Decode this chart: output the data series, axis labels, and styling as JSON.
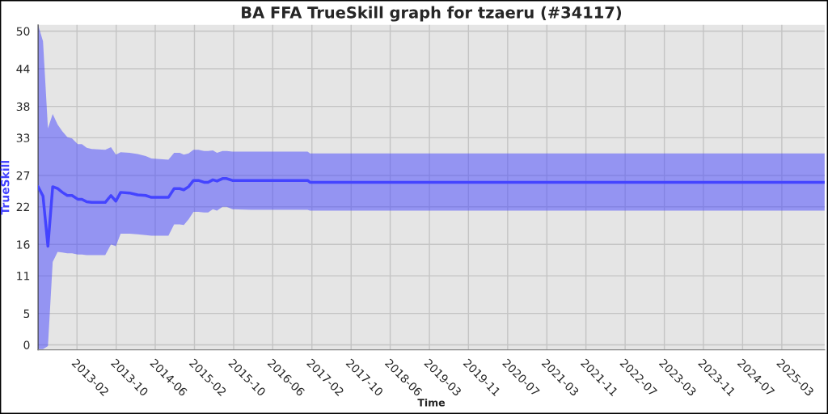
{
  "chart_data": {
    "type": "line",
    "title": "BA FFA TrueSkill graph for tzaeru (#34117)",
    "xlabel": "Time",
    "ylabel": "TrueSkill",
    "x": [
      "2012-06-01",
      "2012-07-02",
      "2012-08-02",
      "2012-09-01",
      "2012-10-02",
      "2012-11-01",
      "2012-12-02",
      "2013-01-01",
      "2013-02-06",
      "2013-03-04",
      "2013-04-03",
      "2013-05-04",
      "2013-07-29",
      "2013-09-03",
      "2013-10-04",
      "2013-11-03",
      "2013-12-29",
      "2014-02-18",
      "2014-04-10",
      "2014-05-16",
      "2014-08-31",
      "2014-10-06",
      "2014-11-10",
      "2014-12-06",
      "2015-01-05",
      "2015-02-05",
      "2015-03-08",
      "2015-04-12",
      "2015-05-08",
      "2015-06-07",
      "2015-07-03",
      "2015-08-07",
      "2015-09-02",
      "2015-10-08",
      "2016-02-02",
      "2017-01-24",
      "2017-02-08",
      "2025-12-25"
    ],
    "series": [
      {
        "color": "#4444ff",
        "values": [
          25.2,
          23.7,
          15.7,
          25.2,
          24.9,
          24.3,
          23.8,
          23.8,
          23.2,
          23.2,
          22.8,
          22.7,
          22.7,
          23.8,
          22.9,
          24.3,
          24.2,
          23.9,
          23.8,
          23.5,
          23.5,
          24.9,
          24.9,
          24.7,
          25.2,
          26.2,
          26.2,
          25.9,
          25.9,
          26.3,
          26.1,
          26.5,
          26.5,
          26.2,
          26.2,
          26.2,
          25.9,
          25.9
        ],
        "lower": [
          -0.7,
          -0.7,
          -0.2,
          13.2,
          14.8,
          14.7,
          14.6,
          14.6,
          14.4,
          14.4,
          14.3,
          14.3,
          14.3,
          16.0,
          15.7,
          17.7,
          17.7,
          17.6,
          17.5,
          17.4,
          17.4,
          19.2,
          19.2,
          19.1,
          20.0,
          21.2,
          21.2,
          21.1,
          21.1,
          21.6,
          21.4,
          22.0,
          22.0,
          21.6,
          21.5,
          21.5,
          21.4,
          21.4
        ],
        "upper": [
          51.0,
          48.4,
          34.5,
          36.8,
          35.1,
          34.0,
          33.1,
          32.9,
          32.0,
          32.0,
          31.4,
          31.2,
          31.1,
          31.5,
          30.3,
          30.7,
          30.6,
          30.4,
          30.1,
          29.7,
          29.5,
          30.6,
          30.6,
          30.3,
          30.5,
          31.1,
          31.1,
          30.9,
          30.9,
          31.0,
          30.6,
          30.9,
          30.9,
          30.8,
          30.8,
          30.8,
          30.5,
          30.5
        ]
      }
    ],
    "xlim": [
      "2012-06-01",
      "2025-12-25"
    ],
    "xticks": [
      {
        "value": "2013-02-01",
        "label": "2013-02"
      },
      {
        "value": "2013-10-06",
        "label": "2013-10"
      },
      {
        "value": "2014-06-09",
        "label": "2014-06"
      },
      {
        "value": "2015-02-11",
        "label": "2015-02"
      },
      {
        "value": "2015-10-16",
        "label": "2015-10"
      },
      {
        "value": "2016-06-18",
        "label": "2016-06"
      },
      {
        "value": "2017-02-20",
        "label": "2017-02"
      },
      {
        "value": "2017-10-25",
        "label": "2017-10"
      },
      {
        "value": "2018-06-28",
        "label": "2018-06"
      },
      {
        "value": "2019-03-02",
        "label": "2019-03"
      },
      {
        "value": "2019-11-03",
        "label": "2019-11"
      },
      {
        "value": "2020-07-07",
        "label": "2020-07"
      },
      {
        "value": "2021-03-11",
        "label": "2021-03"
      },
      {
        "value": "2021-11-12",
        "label": "2021-11"
      },
      {
        "value": "2022-07-17",
        "label": "2022-07"
      },
      {
        "value": "2023-03-21",
        "label": "2023-03"
      },
      {
        "value": "2023-11-22",
        "label": "2023-11"
      },
      {
        "value": "2024-07-26",
        "label": "2024-07"
      },
      {
        "value": "2025-03-30",
        "label": "2025-03"
      }
    ],
    "ylim": [
      -0.8,
      51
    ],
    "yticks": [
      0,
      5,
      11,
      16,
      22,
      27,
      33,
      38,
      44,
      50
    ],
    "grid": true,
    "legend": false
  }
}
